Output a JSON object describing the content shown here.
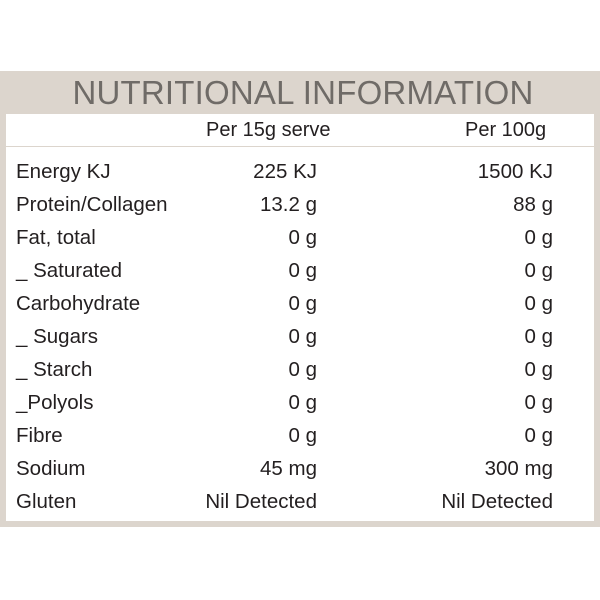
{
  "title": "NUTRITIONAL INFORMATION",
  "columns": {
    "per_serve": "Per 15g serve",
    "per_100g": "Per 100g"
  },
  "rows": [
    {
      "label": "Energy KJ",
      "per_serve": "225 KJ",
      "per_100g": "1500 KJ"
    },
    {
      "label": "Protein/Collagen",
      "per_serve": "13.2 g",
      "per_100g": "88 g"
    },
    {
      "label": "Fat, total",
      "per_serve": "0 g",
      "per_100g": "0 g"
    },
    {
      "label": "_ Saturated",
      "per_serve": "0 g",
      "per_100g": "0 g"
    },
    {
      "label": "Carbohydrate",
      "per_serve": "0 g",
      "per_100g": "0 g"
    },
    {
      "label": "_ Sugars",
      "per_serve": "0 g",
      "per_100g": "0 g"
    },
    {
      "label": "_ Starch",
      "per_serve": "0 g",
      "per_100g": "0 g"
    },
    {
      "label": "_Polyols",
      "per_serve": "0 g",
      "per_100g": "0 g"
    },
    {
      "label": "Fibre",
      "per_serve": "0 g",
      "per_100g": "0 g"
    },
    {
      "label": "Sodium",
      "per_serve": "45 mg",
      "per_100g": "300 mg"
    },
    {
      "label": "Gluten",
      "per_serve": "Nil Detected",
      "per_100g": "Nil Detected"
    }
  ],
  "colors": {
    "panel": "#dcd5cd",
    "title_text": "#6f6b67",
    "body_text": "#231f20"
  }
}
